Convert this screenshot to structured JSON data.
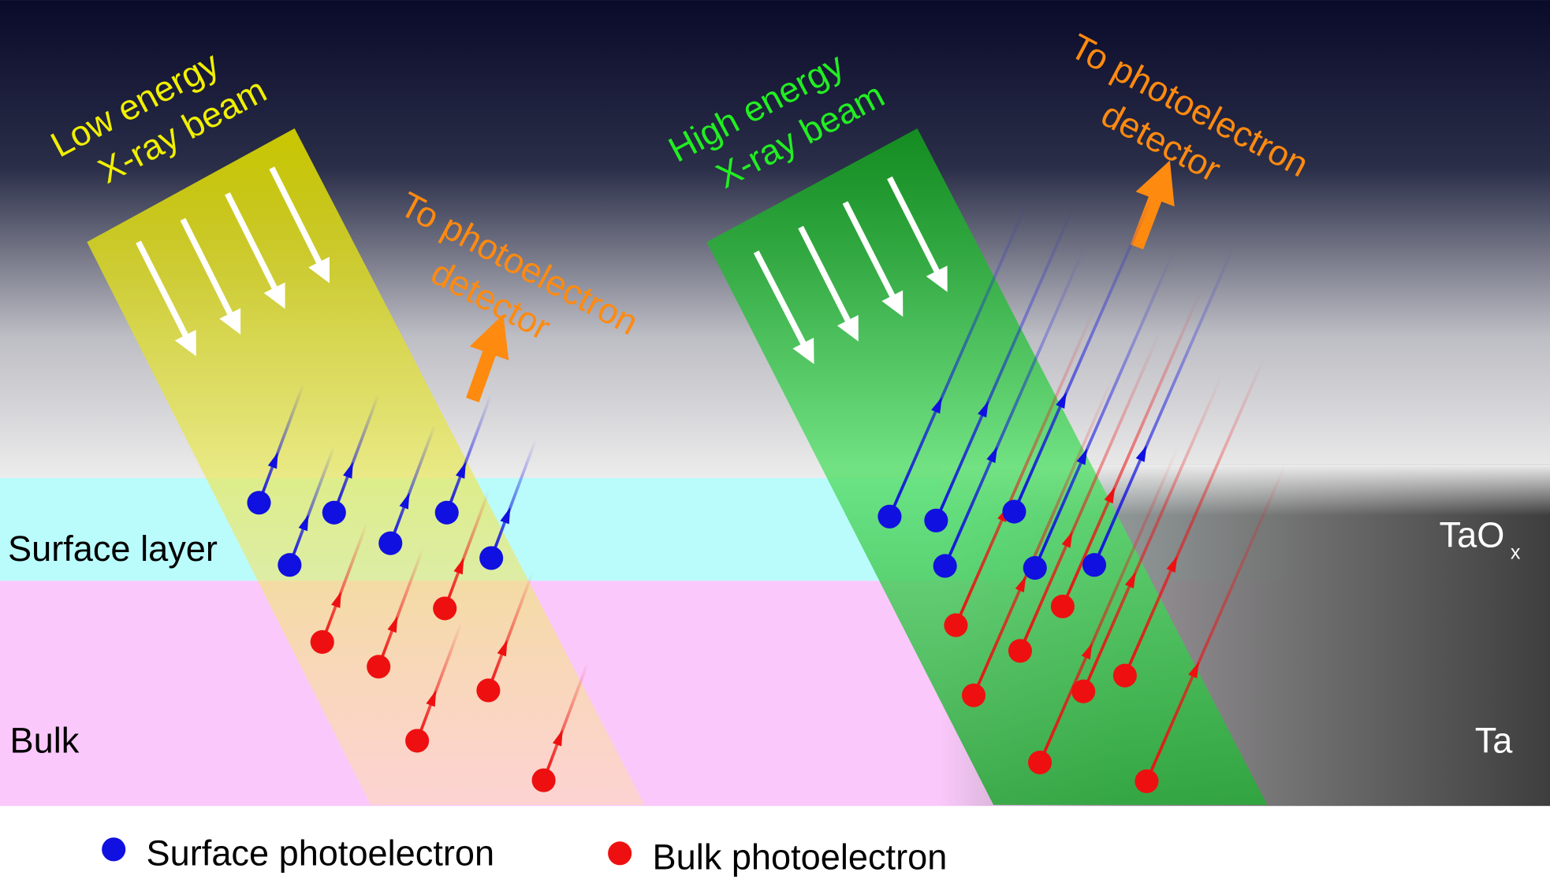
{
  "beams": [
    {
      "label_lines": [
        "Low energy",
        "X-ray beam"
      ],
      "detector_lines": [
        "To photoelectron",
        "detector"
      ]
    },
    {
      "label_lines": [
        "High energy",
        "X-ray beam"
      ],
      "detector_lines": [
        "To photoelectron",
        "detector"
      ]
    }
  ],
  "layers": {
    "surface": "Surface layer",
    "bulk": "Bulk"
  },
  "materials": {
    "oxide": "TaO",
    "oxide_subscript": "x",
    "metal": "Ta"
  },
  "legend": [
    {
      "label": "Surface photoelectron"
    },
    {
      "label": "Bulk photoelectron"
    }
  ]
}
